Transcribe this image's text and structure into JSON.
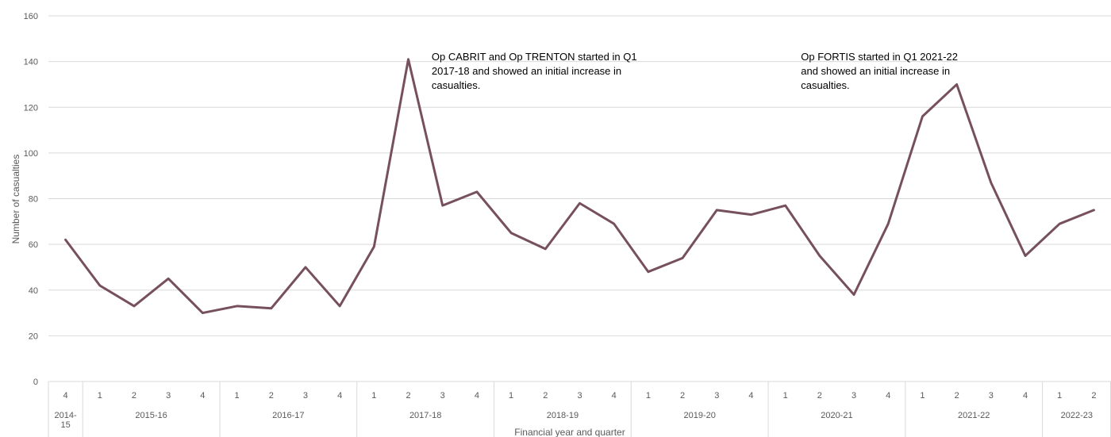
{
  "chart_data": {
    "type": "line",
    "ylabel": "Number of casualties",
    "xlabel": "Financial year and quarter",
    "ylim": [
      0,
      160
    ],
    "yticks": [
      "0",
      "20",
      "40",
      "60",
      "80",
      "100",
      "120",
      "140",
      "160"
    ],
    "grid": true,
    "line_color": "#76505c",
    "x": [
      "4",
      "1",
      "2",
      "3",
      "4",
      "1",
      "2",
      "3",
      "4",
      "1",
      "2",
      "3",
      "4",
      "1",
      "2",
      "3",
      "4",
      "1",
      "2",
      "3",
      "4",
      "1",
      "2",
      "3",
      "4",
      "1",
      "2",
      "3",
      "4",
      "1",
      "2"
    ],
    "values": [
      62,
      42,
      33,
      45,
      30,
      33,
      32,
      50,
      33,
      59,
      141,
      77,
      83,
      65,
      58,
      78,
      69,
      48,
      54,
      75,
      73,
      77,
      55,
      38,
      69,
      116,
      130,
      87,
      55,
      69,
      75
    ],
    "years": [
      {
        "label": "2014-15",
        "label_lines": [
          "2014-",
          "15"
        ],
        "count": 1
      },
      {
        "label": "2015-16",
        "label_lines": [
          "2015-16"
        ],
        "count": 4
      },
      {
        "label": "2016-17",
        "label_lines": [
          "2016-17"
        ],
        "count": 4
      },
      {
        "label": "2017-18",
        "label_lines": [
          "2017-18"
        ],
        "count": 4
      },
      {
        "label": "2018-19",
        "label_lines": [
          "2018-19"
        ],
        "count": 4
      },
      {
        "label": "2019-20",
        "label_lines": [
          "2019-20"
        ],
        "count": 4
      },
      {
        "label": "2020-21",
        "label_lines": [
          "2020-21"
        ],
        "count": 4
      },
      {
        "label": "2021-22",
        "label_lines": [
          "2021-22"
        ],
        "count": 4
      },
      {
        "label": "2022-23",
        "label_lines": [
          "2022-23"
        ],
        "count": 2
      }
    ],
    "annotations": [
      {
        "lines": [
          "Op CABRIT and Op TRENTON started in Q1",
          "2017-18 and showed an initial increase in",
          "casualties."
        ],
        "anchor_index": 10
      },
      {
        "lines": [
          "Op FORTIS started in Q1 2021-22",
          "and showed an initial increase in",
          "casualties."
        ],
        "anchor_index": 22
      }
    ]
  }
}
